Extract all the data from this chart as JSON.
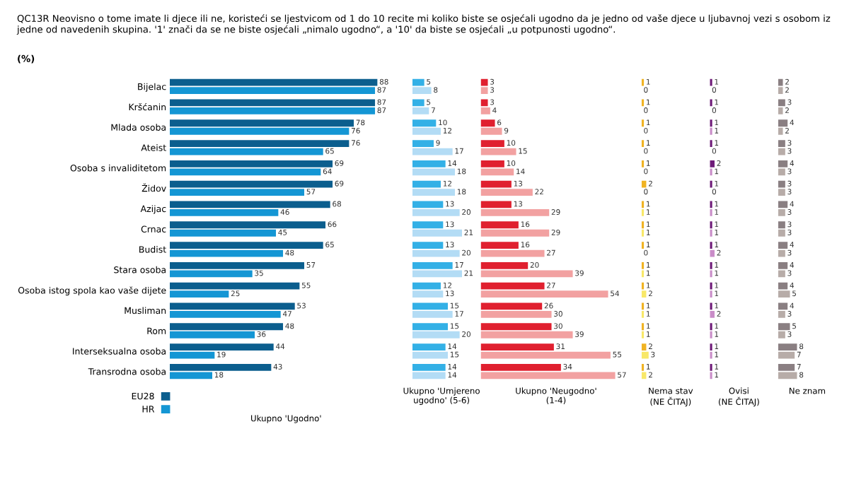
{
  "chart_data": [
    {
      "type": "bar",
      "orientation": "horizontal",
      "title": "QC13R Neovisno o tome imate li djece ili ne, koristeći se ljestvicom od 1 do 10 recite mi koliko biste se osjećali ugodno da je jedno od vaše djece u ljubavnoj vezi s osobom iz jedne od navedenih skupina. '1' znači da se ne biste osjećali „nimalo ugodno“, a '10' da biste se osjećali „u potpunosti ugodno“.",
      "subtitle": "(%)",
      "xlabel": "Ukupno 'Ugodno'",
      "categories": [
        "Bijelac",
        "Kršćanin",
        "Mlada osoba",
        "Ateist",
        "Osoba s invaliditetom",
        "Židov",
        "Azijac",
        "Crnac",
        "Budist",
        "Stara osoba",
        "Osoba istog spola kao vaše dijete",
        "Musliman",
        "Rom",
        "Interseksualna osoba",
        "Transrodna osoba"
      ],
      "tick_labels": "y",
      "data_labels": true,
      "legend": "bottom left",
      "series": [
        {
          "name": "EU28",
          "color": "#0b5e8e",
          "values": [
            88,
            87,
            78,
            76,
            69,
            69,
            68,
            66,
            65,
            57,
            55,
            53,
            48,
            44,
            43
          ]
        },
        {
          "name": "HR",
          "color": "#1496d4",
          "values": [
            87,
            87,
            76,
            65,
            64,
            57,
            46,
            45,
            48,
            35,
            25,
            47,
            36,
            19,
            18
          ]
        }
      ]
    },
    {
      "type": "bar",
      "orientation": "horizontal",
      "xlabel": "Ukupno 'Umjereno\nugodno' (5-6)",
      "categories": [
        null,
        null,
        null,
        null,
        null,
        null,
        null,
        null,
        null,
        null,
        null,
        null,
        null,
        null,
        null
      ],
      "tick_labels": false,
      "data_labels": true,
      "series": [
        {
          "color": "#33b0e6",
          "values": [
            5,
            5,
            10,
            9,
            14,
            12,
            13,
            13,
            13,
            17,
            12,
            15,
            15,
            14,
            14
          ]
        },
        {
          "color": "#b3dcf5",
          "values": [
            8,
            7,
            12,
            17,
            18,
            18,
            20,
            21,
            20,
            21,
            13,
            17,
            20,
            15,
            14
          ]
        }
      ]
    },
    {
      "type": "bar",
      "orientation": "horizontal",
      "xlabel": "Ukupno 'Neugodno'\n(1-4)",
      "categories": [
        null,
        null,
        null,
        null,
        null,
        null,
        null,
        null,
        null,
        null,
        null,
        null,
        null,
        null,
        null
      ],
      "tick_labels": false,
      "data_labels": true,
      "series": [
        {
          "color": "#e0202f",
          "values": [
            3,
            3,
            6,
            10,
            10,
            13,
            13,
            16,
            16,
            20,
            27,
            26,
            30,
            31,
            34
          ]
        },
        {
          "color": "#f2a1a1",
          "values": [
            3,
            4,
            9,
            15,
            14,
            22,
            29,
            29,
            27,
            39,
            54,
            30,
            39,
            55,
            57
          ]
        }
      ]
    },
    {
      "type": "bar",
      "orientation": "horizontal",
      "xlabel": "Nema stav\n(NE ČITAJ)",
      "categories": [
        null,
        null,
        null,
        null,
        null,
        null,
        null,
        null,
        null,
        null,
        null,
        null,
        null,
        null,
        null
      ],
      "tick_labels": false,
      "data_labels": true,
      "series": [
        {
          "color": "#f0b323",
          "values": [
            1,
            1,
            1,
            1,
            1,
            2,
            1,
            1,
            1,
            1,
            1,
            1,
            1,
            2,
            1
          ]
        },
        {
          "color": "#f8e868",
          "values": [
            0,
            0,
            0,
            0,
            0,
            0,
            1,
            1,
            0,
            1,
            2,
            1,
            1,
            3,
            2
          ]
        }
      ]
    },
    {
      "type": "bar",
      "orientation": "horizontal",
      "xlabel": "Ovisi\n(NE ČITAJ)",
      "categories": [
        null,
        null,
        null,
        null,
        null,
        null,
        null,
        null,
        null,
        null,
        null,
        null,
        null,
        null,
        null
      ],
      "tick_labels": false,
      "data_labels": true,
      "series": [
        {
          "color": "#6e1a78",
          "values": [
            1,
            1,
            1,
            1,
            2,
            1,
            1,
            1,
            1,
            1,
            1,
            1,
            1,
            1,
            1
          ]
        },
        {
          "color": "#c98cc8",
          "values": [
            0,
            0,
            1,
            0,
            1,
            0,
            1,
            1,
            2,
            1,
            1,
            2,
            1,
            1,
            1
          ]
        }
      ]
    },
    {
      "type": "bar",
      "orientation": "horizontal",
      "xlabel": "Ne znam",
      "categories": [
        null,
        null,
        null,
        null,
        null,
        null,
        null,
        null,
        null,
        null,
        null,
        null,
        null,
        null,
        null
      ],
      "tick_labels": false,
      "data_labels": true,
      "series": [
        {
          "color": "#8a7f82",
          "values": [
            2,
            3,
            4,
            3,
            4,
            3,
            4,
            3,
            4,
            4,
            4,
            4,
            5,
            8,
            7
          ]
        },
        {
          "color": "#b7aca8",
          "values": [
            2,
            2,
            2,
            3,
            3,
            3,
            3,
            3,
            3,
            3,
            5,
            3,
            3,
            7,
            8
          ]
        }
      ]
    }
  ]
}
